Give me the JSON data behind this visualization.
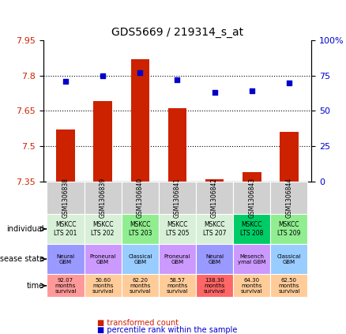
{
  "title": "GDS5669 / 219314_s_at",
  "samples": [
    "GSM1306838",
    "GSM1306839",
    "GSM1306840",
    "GSM1306841",
    "GSM1306842",
    "GSM1306843",
    "GSM1306844"
  ],
  "bar_values": [
    7.57,
    7.69,
    7.87,
    7.66,
    7.36,
    7.39,
    7.56
  ],
  "dot_values": [
    71,
    75,
    77,
    72,
    63,
    64,
    70
  ],
  "ylim_left": [
    7.35,
    7.95
  ],
  "ylim_right": [
    0,
    100
  ],
  "yticks_left": [
    7.35,
    7.5,
    7.65,
    7.8,
    7.95
  ],
  "yticks_right": [
    0,
    25,
    50,
    75,
    100
  ],
  "individual_labels": [
    "MSKCC\nLTS 201",
    "MSKCC\nLTS 202",
    "MSKCC\nLTS 203",
    "MSKCC\nLTS 205",
    "MSKCC\nLTS 207",
    "MSKCC\nLTS 208",
    "MSKCC\nLTS 209"
  ],
  "individual_colors": [
    "#d8f0d8",
    "#d8f0d8",
    "#90ee90",
    "#d8f0d8",
    "#d8f0d8",
    "#00cc66",
    "#90ee90"
  ],
  "disease_labels": [
    "Neural\nGBM",
    "Proneural\nGBM",
    "Classical\nGBM",
    "Proneural\nGBM",
    "Neural\nGBM",
    "Mesench\nymal GBM",
    "Classical\nGBM"
  ],
  "disease_colors": [
    "#9999ff",
    "#cc99ff",
    "#99ccff",
    "#cc99ff",
    "#9999ff",
    "#cc99ff",
    "#99ccff"
  ],
  "time_labels": [
    "92.07\nmonths\nsurvival",
    "50.60\nmonths\nsurvival",
    "62.20\nmonths\nsurvival",
    "58.57\nmonths\nsurvival",
    "138.30\nmonths\nsurvival",
    "64.30\nmonths\nsurvival",
    "62.50\nmonths\nsurvival"
  ],
  "time_colors": [
    "#ff9999",
    "#ffcc99",
    "#ffcc99",
    "#ffcc99",
    "#ff6666",
    "#ffcc99",
    "#ffcc99"
  ],
  "bar_color": "#cc2200",
  "dot_color": "#0000cc",
  "legend_bar_label": "transformed count",
  "legend_dot_label": "percentile rank within the sample",
  "row_labels": [
    "individual",
    "disease state",
    "time"
  ],
  "grid_color": "black",
  "grid_linestyle": "dotted"
}
